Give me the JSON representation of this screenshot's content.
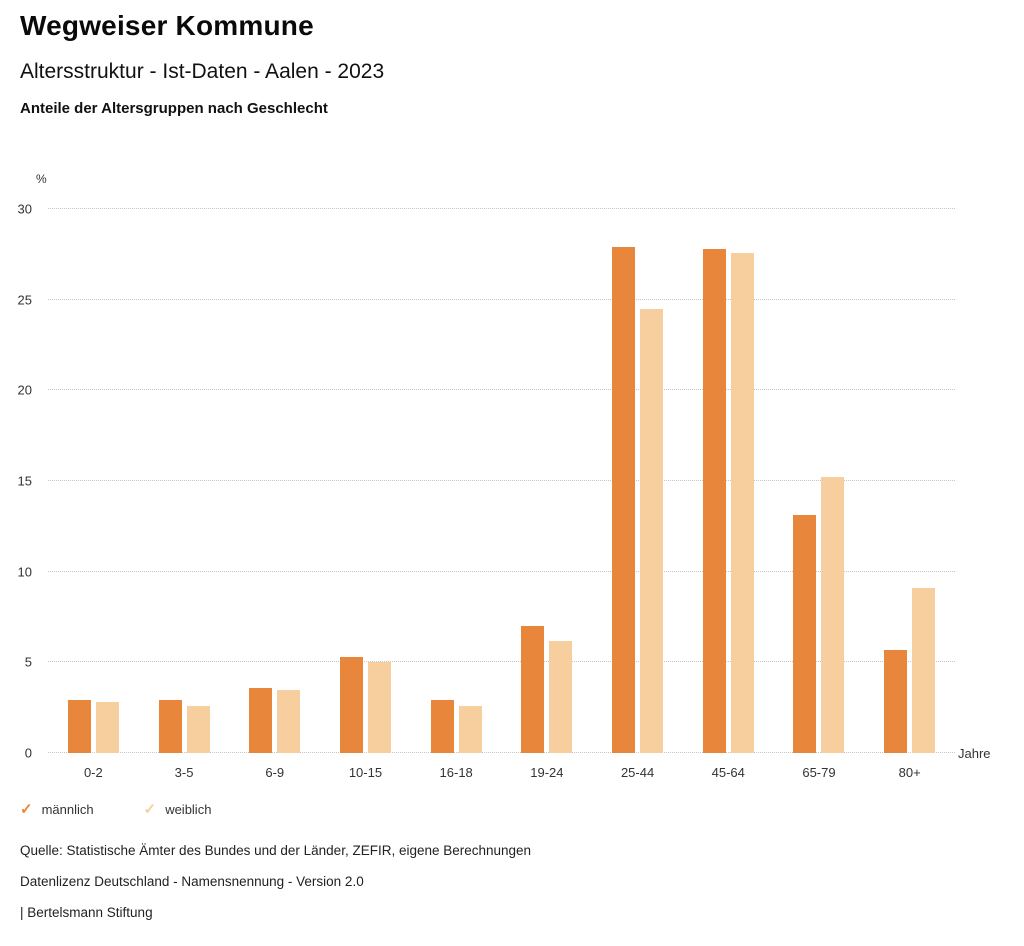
{
  "header": {
    "title": "Wegweiser Kommune",
    "subtitle": "Altersstruktur - Ist-Daten - Aalen - 2023",
    "chart_heading": "Anteile der Altersgruppen nach Geschlecht"
  },
  "chart_data": {
    "type": "bar",
    "categories": [
      "0-2",
      "3-5",
      "6-9",
      "10-15",
      "16-18",
      "19-24",
      "25-44",
      "45-64",
      "65-79",
      "80+"
    ],
    "series": [
      {
        "name": "männlich",
        "color": "#e8873b",
        "values": [
          2.9,
          2.9,
          3.6,
          5.3,
          2.9,
          7.0,
          27.9,
          27.8,
          13.1,
          5.7
        ]
      },
      {
        "name": "weiblich",
        "color": "#f7cf9e",
        "values": [
          2.8,
          2.6,
          3.5,
          5.0,
          2.6,
          6.2,
          24.5,
          27.6,
          15.2,
          9.1
        ]
      }
    ],
    "title": "Anteile der Altersgruppen nach Geschlecht",
    "xlabel": "Jahre",
    "ylabel": "%",
    "ylim": [
      0,
      30
    ],
    "yticks": [
      0,
      5,
      10,
      15,
      20,
      25,
      30
    ],
    "grid": true,
    "legend_position": "bottom"
  },
  "footer": {
    "source": "Quelle: Statistische Ämter des Bundes und der Länder, ZEFIR, eigene Berechnungen",
    "license": "Datenlizenz Deutschland - Namensnennung - Version 2.0",
    "attribution": "| Bertelsmann Stiftung"
  }
}
